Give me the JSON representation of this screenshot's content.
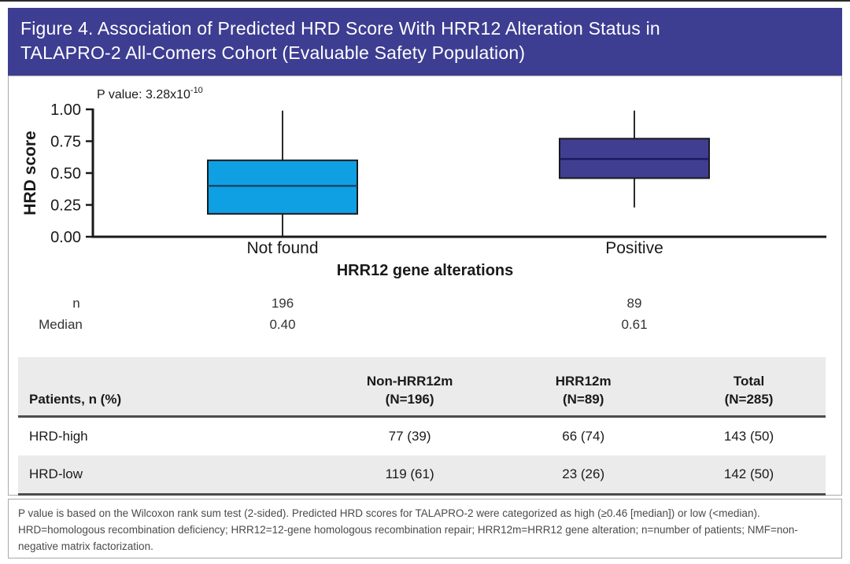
{
  "figure": {
    "title_line1": "Figure 4. Association of Predicted HRD Score With HRR12 Alteration Status in",
    "title_line2": "TALAPRO-2 All-Comers Cohort (Evaluable Safety Population)"
  },
  "colors": {
    "title_bar_bg": "#3D3D92",
    "title_text": "#FFFFFF",
    "table_header_bg": "#EBEBEB",
    "table_alt_row_bg": "#EBEBEB",
    "heavy_rule": "#4D4D4D",
    "panel_border": "#A9A9A9",
    "footnote_text": "#4A4A4A",
    "axis_color": "#1A1A1A",
    "top_rule": "#2B2B2B"
  },
  "chart_data": {
    "type": "boxplot",
    "p_value_label": "P value: 3.28x10",
    "p_value_exponent": "-10",
    "ylabel": "HRD score",
    "xlabel": "HRR12 gene alterations",
    "ylim": [
      0,
      1
    ],
    "yticks": [
      {
        "v": 1.0,
        "label": "1.00"
      },
      {
        "v": 0.75,
        "label": "0.75"
      },
      {
        "v": 0.5,
        "label": "0.50"
      },
      {
        "v": 0.25,
        "label": "0.25"
      },
      {
        "v": 0.0,
        "label": "0.00"
      }
    ],
    "row_labels": [
      "n",
      "Median"
    ],
    "series": [
      {
        "category": "Not found",
        "n_value": "196",
        "median_value": "0.40",
        "whisker_low": 0.0,
        "q1": 0.18,
        "median": 0.4,
        "q3": 0.6,
        "whisker_high": 0.99,
        "fill": "#0FA0E4",
        "median_color": "#164A6E"
      },
      {
        "category": "Positive",
        "n_value": "89",
        "median_value": "0.61",
        "whisker_low": 0.23,
        "q1": 0.46,
        "median": 0.61,
        "q3": 0.77,
        "whisker_high": 0.99,
        "fill": "#403E91",
        "median_color": "#1B1B5E"
      }
    ]
  },
  "table": {
    "header_label": "Patients, n (%)",
    "columns": [
      {
        "line1": "Non-HRR12m",
        "line2": "(N=196)"
      },
      {
        "line1": "HRR12m",
        "line2": "(N=89)"
      },
      {
        "line1": "Total",
        "line2": "(N=285)"
      }
    ],
    "rows": [
      {
        "label": "HRD-high",
        "values": [
          "77 (39)",
          "66 (74)",
          "143 (50)"
        ]
      },
      {
        "label": "HRD-low",
        "values": [
          "119 (61)",
          "23 (26)",
          "142 (50)"
        ]
      }
    ]
  },
  "footnote": {
    "sentence": "P value is based on the Wilcoxon rank sum test (2-sided). Predicted HRD scores for TALAPRO-2 were categorized as high (≥0.46 [median]) or low (<median).",
    "abbreviations": "HRD=homologous recombination deficiency; HRR12=12-gene homologous recombination repair; HRR12m=HRR12 gene alteration; n=number of patients; NMF=non-negative matrix factorization."
  }
}
